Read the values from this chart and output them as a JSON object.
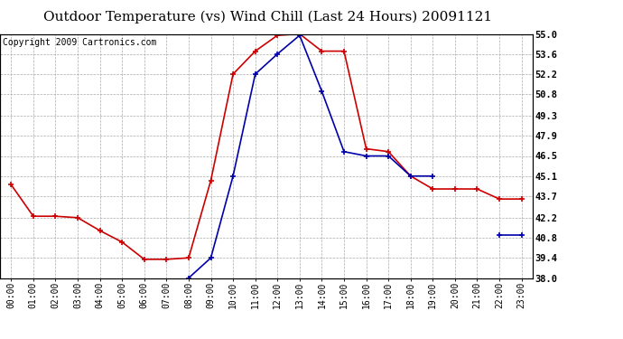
{
  "title": "Outdoor Temperature (vs) Wind Chill (Last 24 Hours) 20091121",
  "copyright": "Copyright 2009 Cartronics.com",
  "x_labels": [
    "00:00",
    "01:00",
    "02:00",
    "03:00",
    "04:00",
    "05:00",
    "06:00",
    "07:00",
    "08:00",
    "09:00",
    "10:00",
    "11:00",
    "12:00",
    "13:00",
    "14:00",
    "15:00",
    "16:00",
    "17:00",
    "18:00",
    "19:00",
    "20:00",
    "21:00",
    "22:00",
    "23:00"
  ],
  "temp_red": [
    44.5,
    42.3,
    42.3,
    42.2,
    41.3,
    40.5,
    39.3,
    39.3,
    39.4,
    44.8,
    52.2,
    53.8,
    54.9,
    55.0,
    53.8,
    53.8,
    47.0,
    46.8,
    45.1,
    44.2,
    44.2,
    44.2,
    43.5,
    43.5
  ],
  "wind_chill_blue": [
    null,
    null,
    null,
    null,
    null,
    null,
    null,
    null,
    38.0,
    39.4,
    45.1,
    52.2,
    53.6,
    54.9,
    51.0,
    46.8,
    46.5,
    46.5,
    45.1,
    45.1,
    null,
    null,
    41.0,
    41.0
  ],
  "ylim": [
    38.0,
    55.0
  ],
  "yticks": [
    38.0,
    39.4,
    40.8,
    42.2,
    43.7,
    45.1,
    46.5,
    47.9,
    49.3,
    50.8,
    52.2,
    53.6,
    55.0
  ],
  "red_color": "#cc0000",
  "blue_color": "#0000aa",
  "bg_color": "#ffffff",
  "grid_color": "#aaaaaa",
  "title_fontsize": 11,
  "copyright_fontsize": 7
}
